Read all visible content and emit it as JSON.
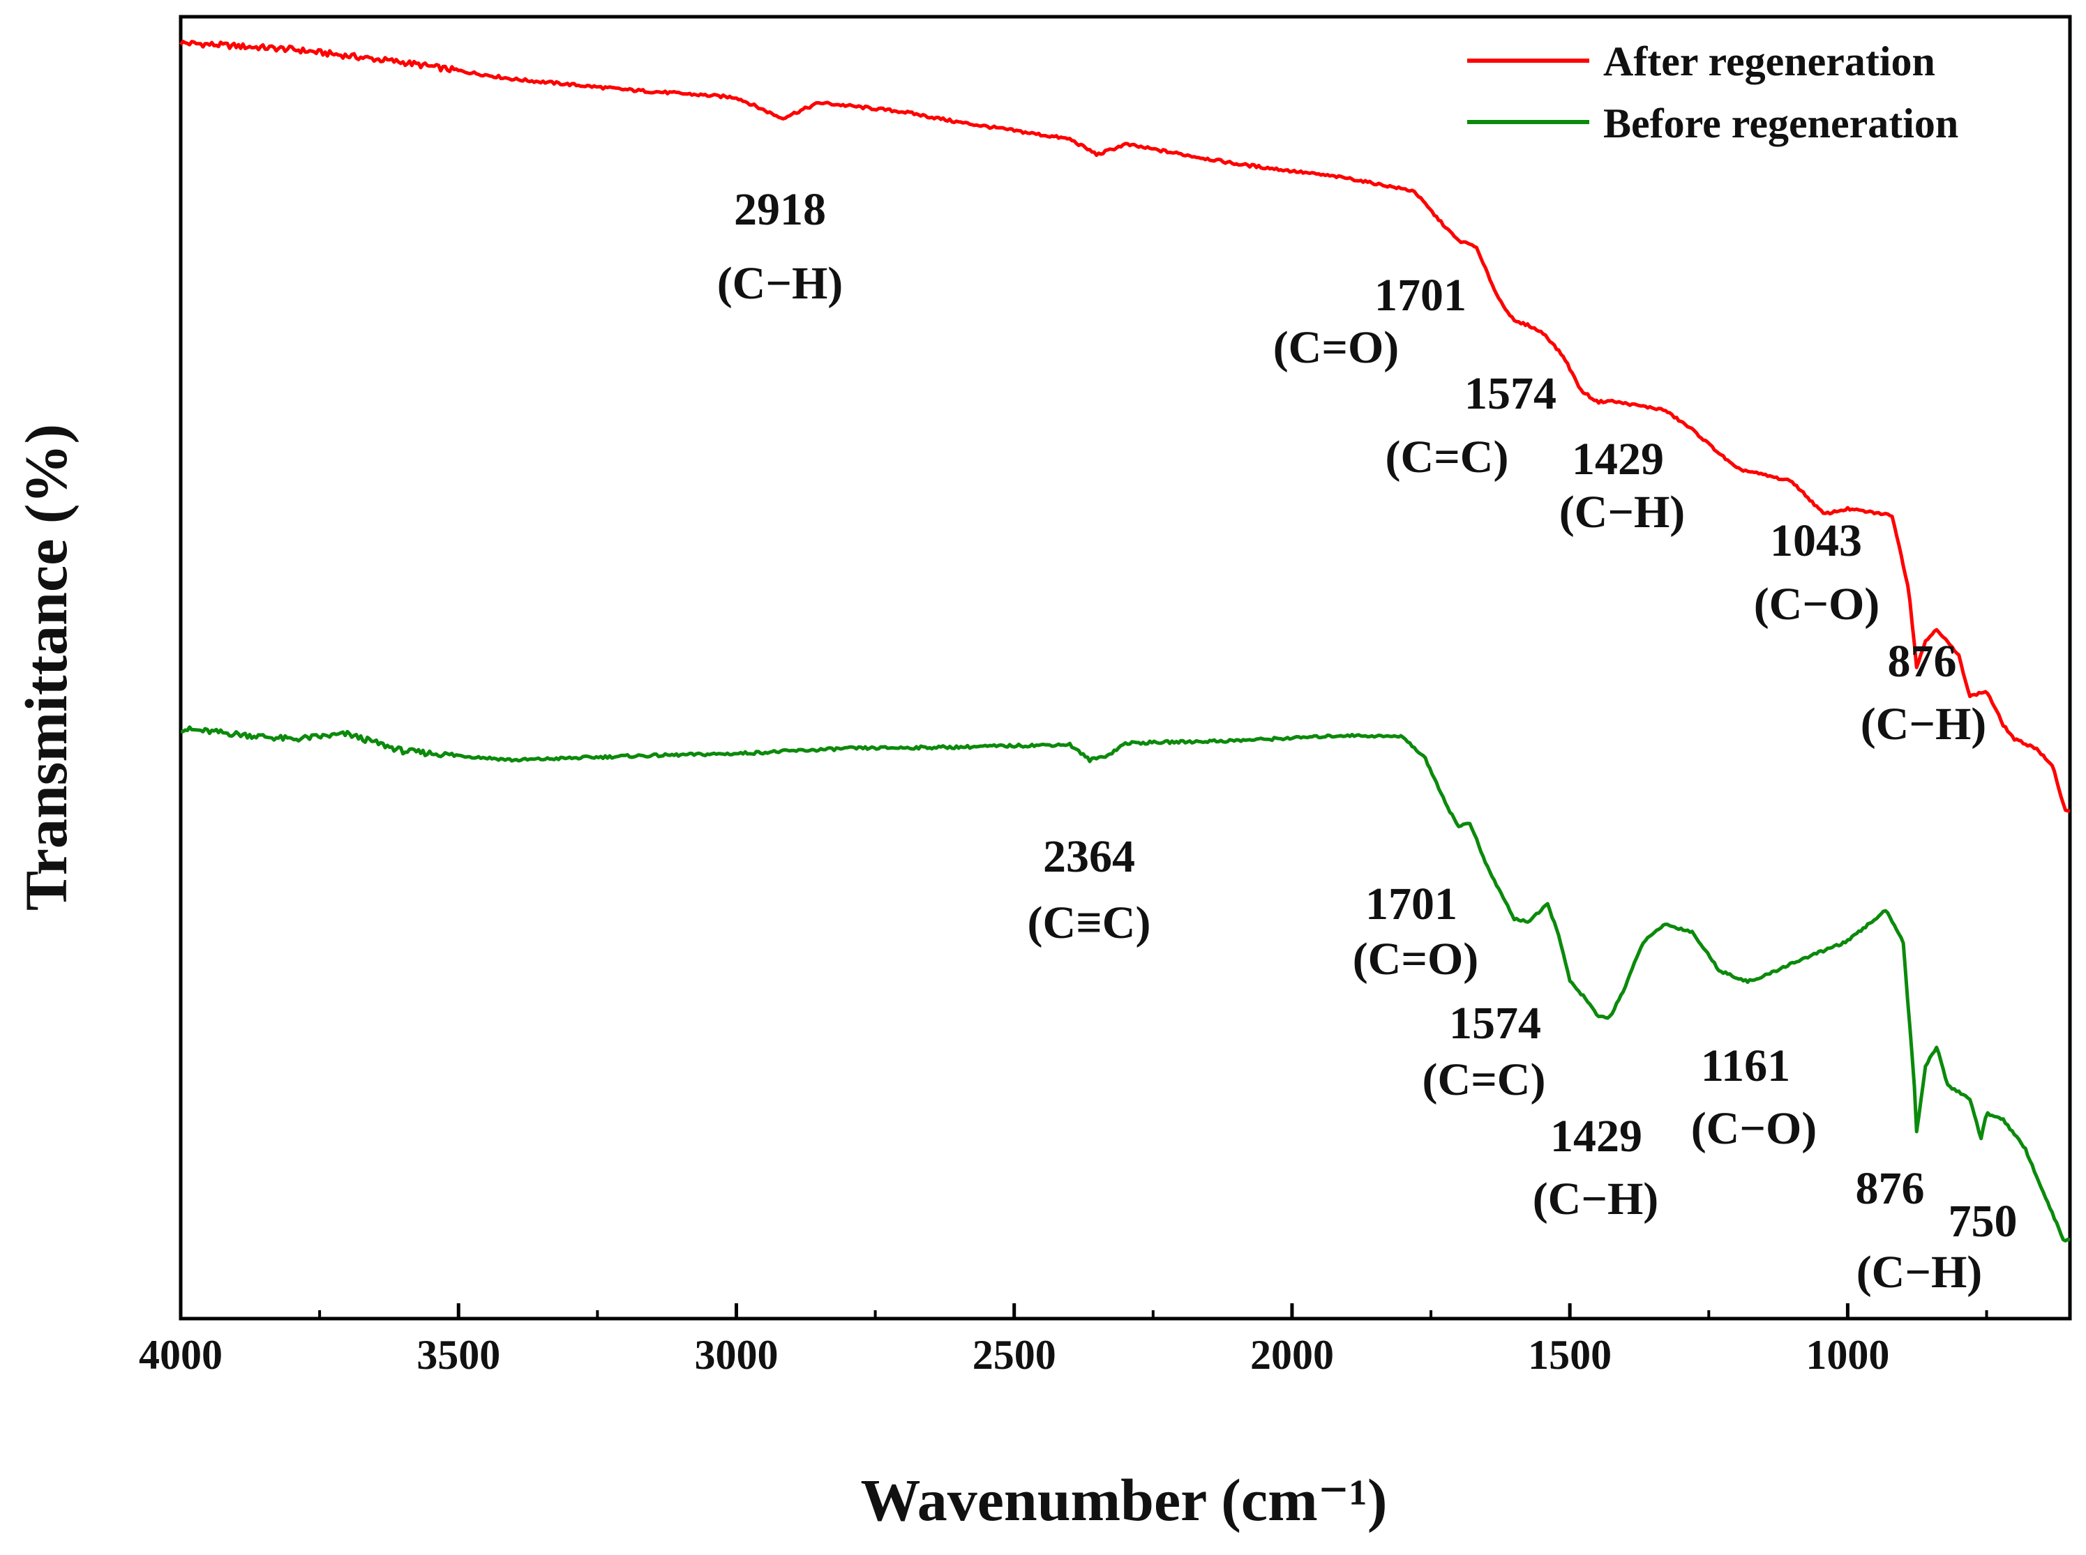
{
  "chart_data": {
    "type": "line",
    "title": "",
    "xlabel": "Wavenumber (cm⁻¹)",
    "ylabel": "Transmittance (%)",
    "xlim": [
      4000,
      600
    ],
    "x_reversed": true,
    "ylim": [
      0,
      100
    ],
    "y_ticks_labeled": false,
    "x_ticks": [
      4000,
      3500,
      3000,
      2500,
      2000,
      1500,
      1000
    ],
    "x_tick_labels": [
      "4000",
      "3500",
      "3000",
      "2500",
      "2000",
      "1500",
      "1000"
    ],
    "legend_position": "top-right",
    "series": [
      {
        "name": "After regeneration",
        "color": "#ff0000",
        "points": [
          [
            4000,
            98
          ],
          [
            3800,
            97.5
          ],
          [
            3600,
            96.5
          ],
          [
            3400,
            95.2
          ],
          [
            3200,
            94.4
          ],
          [
            3000,
            93.8
          ],
          [
            2918,
            92.2
          ],
          [
            2850,
            93.4
          ],
          [
            2700,
            92.7
          ],
          [
            2600,
            91.9
          ],
          [
            2400,
            90.6
          ],
          [
            2350,
            89.4
          ],
          [
            2300,
            90.2
          ],
          [
            2100,
            88.7
          ],
          [
            1900,
            87.6
          ],
          [
            1780,
            86.6
          ],
          [
            1740,
            84.6
          ],
          [
            1701,
            82.8
          ],
          [
            1670,
            82.4
          ],
          [
            1630,
            78.5
          ],
          [
            1600,
            76.6
          ],
          [
            1574,
            76.3
          ],
          [
            1545,
            75.6
          ],
          [
            1510,
            73.8
          ],
          [
            1480,
            71.3
          ],
          [
            1450,
            70.4
          ],
          [
            1429,
            70.5
          ],
          [
            1330,
            69.8
          ],
          [
            1280,
            68.3
          ],
          [
            1200,
            65.3
          ],
          [
            1100,
            64.3
          ],
          [
            1043,
            61.8
          ],
          [
            1000,
            62.2
          ],
          [
            920,
            61.7
          ],
          [
            890,
            56.0
          ],
          [
            876,
            50.1
          ],
          [
            860,
            52.0
          ],
          [
            840,
            53.0
          ],
          [
            800,
            50.9
          ],
          [
            780,
            47.8
          ],
          [
            750,
            48.2
          ],
          [
            720,
            45.6
          ],
          [
            700,
            44.5
          ],
          [
            660,
            43.8
          ],
          [
            630,
            42.3
          ],
          [
            610,
            39.2
          ],
          [
            600,
            38.9
          ]
        ]
      },
      {
        "name": "Before regeneration",
        "color": "#0b8a0b",
        "points": [
          [
            4000,
            45.3
          ],
          [
            3800,
            44.5
          ],
          [
            3700,
            44.9
          ],
          [
            3600,
            43.6
          ],
          [
            3400,
            42.9
          ],
          [
            3200,
            43.2
          ],
          [
            3000,
            43.4
          ],
          [
            2800,
            43.8
          ],
          [
            2600,
            43.9
          ],
          [
            2400,
            44.1
          ],
          [
            2364,
            42.9
          ],
          [
            2330,
            43.3
          ],
          [
            2300,
            44.2
          ],
          [
            2100,
            44.4
          ],
          [
            1900,
            44.8
          ],
          [
            1800,
            44.7
          ],
          [
            1760,
            43.0
          ],
          [
            1720,
            39.3
          ],
          [
            1701,
            37.8
          ],
          [
            1680,
            38.1
          ],
          [
            1650,
            34.8
          ],
          [
            1600,
            30.7
          ],
          [
            1574,
            30.5
          ],
          [
            1540,
            31.8
          ],
          [
            1520,
            29.5
          ],
          [
            1500,
            25.9
          ],
          [
            1470,
            24.5
          ],
          [
            1450,
            23.2
          ],
          [
            1429,
            23.1
          ],
          [
            1400,
            25.5
          ],
          [
            1370,
            28.8
          ],
          [
            1330,
            30.3
          ],
          [
            1280,
            29.7
          ],
          [
            1230,
            26.7
          ],
          [
            1180,
            25.9
          ],
          [
            1161,
            26.1
          ],
          [
            1100,
            27.3
          ],
          [
            1000,
            29.0
          ],
          [
            930,
            31.4
          ],
          [
            900,
            28.9
          ],
          [
            880,
            17.9
          ],
          [
            876,
            14.3
          ],
          [
            860,
            19.4
          ],
          [
            840,
            20.9
          ],
          [
            820,
            17.9
          ],
          [
            780,
            16.9
          ],
          [
            760,
            13.8
          ],
          [
            750,
            15.8
          ],
          [
            720,
            15.3
          ],
          [
            680,
            13.0
          ],
          [
            650,
            9.9
          ],
          [
            630,
            7.9
          ],
          [
            610,
            5.9
          ],
          [
            600,
            6.1
          ]
        ]
      }
    ],
    "annotations": [
      {
        "series": "After regeneration",
        "wavenumber": 2918,
        "value": "2918",
        "assignment": "(C−H)"
      },
      {
        "series": "After regeneration",
        "wavenumber": 1701,
        "value": "1701",
        "assignment": "(C=O)"
      },
      {
        "series": "After regeneration",
        "wavenumber": 1574,
        "value": "1574",
        "assignment": "(C=C)"
      },
      {
        "series": "After regeneration",
        "wavenumber": 1429,
        "value": "1429",
        "assignment": "(C−H)"
      },
      {
        "series": "After regeneration",
        "wavenumber": 1043,
        "value": "1043",
        "assignment": "(C−O)"
      },
      {
        "series": "After regeneration",
        "wavenumber": 876,
        "value": "876",
        "assignment": "(C−H)"
      },
      {
        "series": "Before regeneration",
        "wavenumber": 2364,
        "value": "2364",
        "assignment": "(C≡C)"
      },
      {
        "series": "Before regeneration",
        "wavenumber": 1701,
        "value": "1701",
        "assignment": "(C=O)"
      },
      {
        "series": "Before regeneration",
        "wavenumber": 1574,
        "value": "1574",
        "assignment": "(C=C)"
      },
      {
        "series": "Before regeneration",
        "wavenumber": 1429,
        "value": "1429",
        "assignment": "(C−H)"
      },
      {
        "series": "Before regeneration",
        "wavenumber": 1161,
        "value": "1161",
        "assignment": "(C−O)"
      },
      {
        "series": "Before regeneration",
        "wavenumber": 876,
        "value": "876",
        "assignment": "(C−H)"
      },
      {
        "series": "Before regeneration",
        "wavenumber": 750,
        "value": "750",
        "assignment": ""
      }
    ]
  }
}
